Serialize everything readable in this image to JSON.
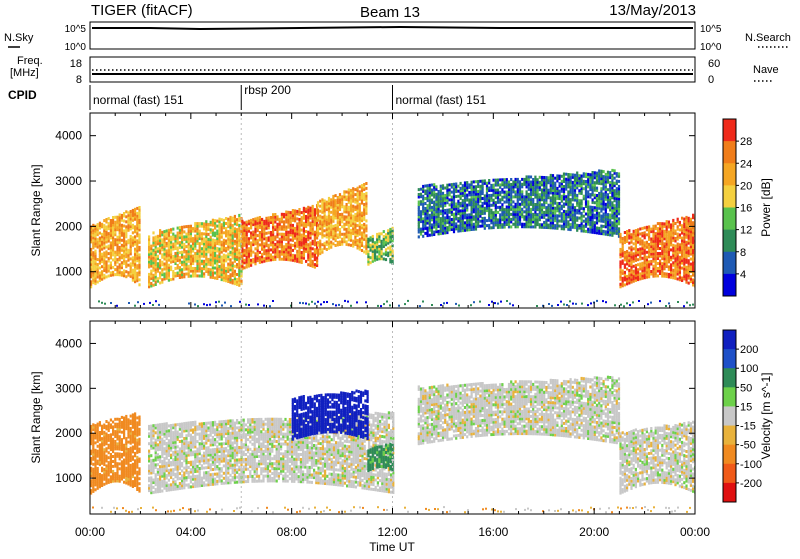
{
  "header": {
    "station": "TIGER (fitACF)",
    "beam": "Beam 13",
    "date": "13/May/2013"
  },
  "top_panels": {
    "nsky_label": "N.Sky",
    "nsearch_label": "N.Search",
    "freq_label_1": "Freq.",
    "freq_label_2": "[MHz]",
    "nave_label": "Nave",
    "cpid_label": "CPID",
    "nsky_ticks": [
      "10^5",
      "10^0"
    ],
    "nsearch_ticks": [
      "10^5",
      "10^0"
    ],
    "freq_ticks": [
      "18",
      "8"
    ],
    "nave_ticks": [
      "60",
      "0"
    ]
  },
  "cpid_segments": [
    {
      "label": "normal (fast) 151",
      "start": 0,
      "end": 6
    },
    {
      "label": "rbsp 200",
      "start": 6,
      "end": 12
    },
    {
      "label": "normal (fast) 151",
      "start": 12,
      "end": 24
    }
  ],
  "x_axis": {
    "label": "Time UT",
    "ticks": [
      "00:00",
      "04:00",
      "08:00",
      "12:00",
      "16:00",
      "20:00",
      "00:00"
    ]
  },
  "y_axis": {
    "label": "Slant Range [km]",
    "ticks": [
      "1000",
      "2000",
      "3000",
      "4000"
    ]
  },
  "power_colorbar": {
    "label": "Power [dB]",
    "ticks": [
      "4",
      "8",
      "12",
      "16",
      "20",
      "24",
      "28"
    ],
    "colors": [
      "#0000dd",
      "#1e5ab4",
      "#2e8b57",
      "#59c24c",
      "#f4d03f",
      "#f5a623",
      "#f07d1a",
      "#ef2a1a"
    ]
  },
  "velocity_colorbar": {
    "label": "Velocity [m s^-1]",
    "ticks": [
      "200",
      "100",
      "50",
      "15",
      "-15",
      "-50",
      "-100",
      "-200"
    ],
    "colors": [
      "#1020c0",
      "#1e50c8",
      "#2e8b57",
      "#6dd14a",
      "#c8c8c8",
      "#e8b23c",
      "#f08a20",
      "#f05a18",
      "#e01010"
    ]
  },
  "chart_data": [
    {
      "type": "heatmap",
      "title": "Power",
      "xlabel": "Time UT",
      "ylabel": "Slant Range [km]",
      "xlim": [
        0,
        24
      ],
      "ylim": [
        200,
        4500
      ],
      "colorbar": {
        "label": "Power [dB]",
        "range": [
          0,
          32
        ]
      },
      "regions": [
        {
          "t": [
            0.0,
            2.0
          ],
          "r": [
            700,
            2500
          ],
          "dominant_db": 22
        },
        {
          "t": [
            2.3,
            6.0
          ],
          "r": [
            700,
            2300
          ],
          "dominant_db": 20
        },
        {
          "t": [
            6.0,
            9.0
          ],
          "r": [
            1100,
            2500
          ],
          "dominant_db": 26
        },
        {
          "t": [
            9.0,
            11.0
          ],
          "r": [
            1400,
            3000
          ],
          "dominant_db": 22
        },
        {
          "t": [
            11.0,
            12.0
          ],
          "r": [
            1200,
            2000
          ],
          "dominant_db": 14
        },
        {
          "t": [
            13.0,
            21.0
          ],
          "r": [
            1800,
            3300
          ],
          "dominant_db": 8
        },
        {
          "t": [
            21.0,
            24.0
          ],
          "r": [
            700,
            2300
          ],
          "dominant_db": 26
        }
      ]
    },
    {
      "type": "heatmap",
      "title": "Velocity",
      "xlabel": "Time UT",
      "ylabel": "Slant Range [km]",
      "xlim": [
        0,
        24
      ],
      "ylim": [
        200,
        4500
      ],
      "colorbar": {
        "label": "Velocity [m s^-1]",
        "range": [
          -200,
          200
        ]
      },
      "regions": [
        {
          "t": [
            0.0,
            2.0
          ],
          "r": [
            700,
            2500
          ],
          "dominant_velocity": -50
        },
        {
          "t": [
            2.3,
            12.0
          ],
          "r": [
            700,
            2500
          ],
          "dominant_velocity": 0
        },
        {
          "t": [
            8.0,
            11.0
          ],
          "r": [
            1900,
            3000
          ],
          "dominant_velocity": 200
        },
        {
          "t": [
            11.0,
            12.0
          ],
          "r": [
            1200,
            1800
          ],
          "dominant_velocity": 50
        },
        {
          "t": [
            13.0,
            21.0
          ],
          "r": [
            1800,
            3300
          ],
          "dominant_velocity": 0
        },
        {
          "t": [
            21.0,
            24.0
          ],
          "r": [
            700,
            2300
          ],
          "dominant_velocity": 0
        }
      ]
    }
  ]
}
